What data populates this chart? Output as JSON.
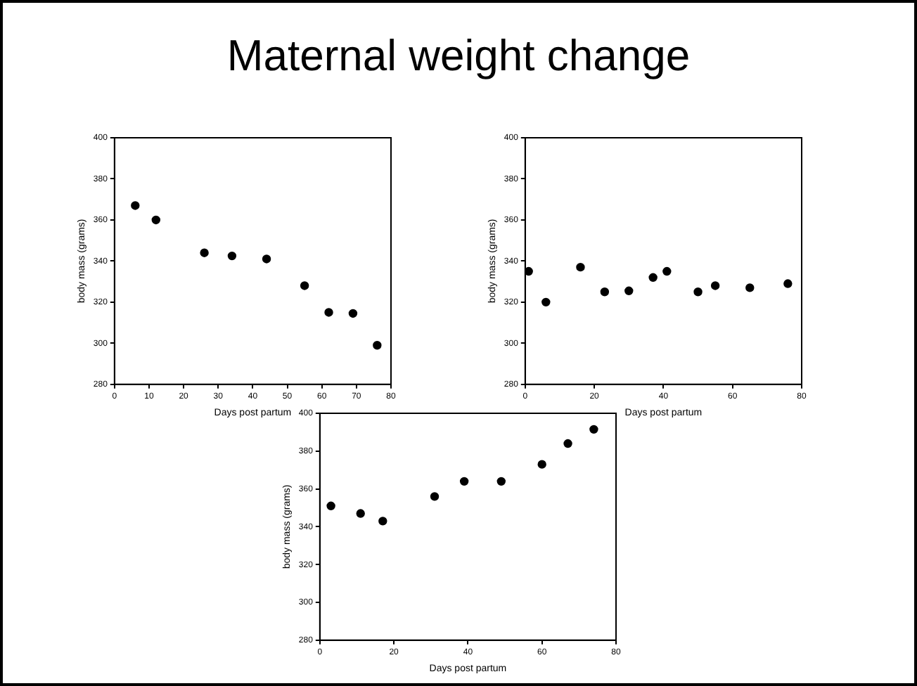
{
  "chart_data": [
    {
      "type": "scatter",
      "title": "Maternal weight change",
      "xlabel": "Days post partum",
      "ylabel": "body mass (grams)",
      "color": "#000000",
      "marker": "circle",
      "x": [
        6,
        12,
        26,
        34,
        44,
        55,
        62,
        69,
        76
      ],
      "values": [
        367,
        360,
        344,
        342.5,
        341,
        328,
        315,
        314.5,
        299
      ],
      "xlim": [
        0,
        80
      ],
      "xticks": [
        0,
        10,
        20,
        30,
        40,
        50,
        60,
        70,
        80
      ],
      "ylim": [
        280,
        400
      ],
      "yticks": [
        280,
        300,
        320,
        340,
        360,
        380,
        400
      ]
    },
    {
      "type": "scatter",
      "xlabel": "Days post partum",
      "ylabel": "body mass (grams)",
      "color": "#000000",
      "marker": "circle",
      "x": [
        1,
        6,
        16,
        23,
        30,
        37,
        41,
        50,
        55,
        65,
        76
      ],
      "values": [
        335,
        320,
        337,
        325,
        325.5,
        332,
        335,
        325,
        328,
        327,
        329
      ],
      "xlim": [
        0,
        80
      ],
      "xticks": [
        0,
        20,
        40,
        60,
        80
      ],
      "ylim": [
        280,
        400
      ],
      "yticks": [
        280,
        300,
        320,
        340,
        360,
        380,
        400
      ]
    },
    {
      "type": "scatter",
      "xlabel": "Days post partum",
      "ylabel": "body mass (grams)",
      "color": "#000000",
      "marker": "circle",
      "x": [
        3,
        11,
        17,
        31,
        39,
        49,
        60,
        67,
        74
      ],
      "values": [
        351,
        347,
        343,
        356,
        364,
        364,
        373,
        384,
        391.5
      ],
      "xlim": [
        0,
        80
      ],
      "xticks": [
        0,
        20,
        40,
        60,
        80
      ],
      "ylim": [
        280,
        400
      ],
      "yticks": [
        280,
        300,
        320,
        340,
        360,
        380,
        400
      ]
    }
  ]
}
